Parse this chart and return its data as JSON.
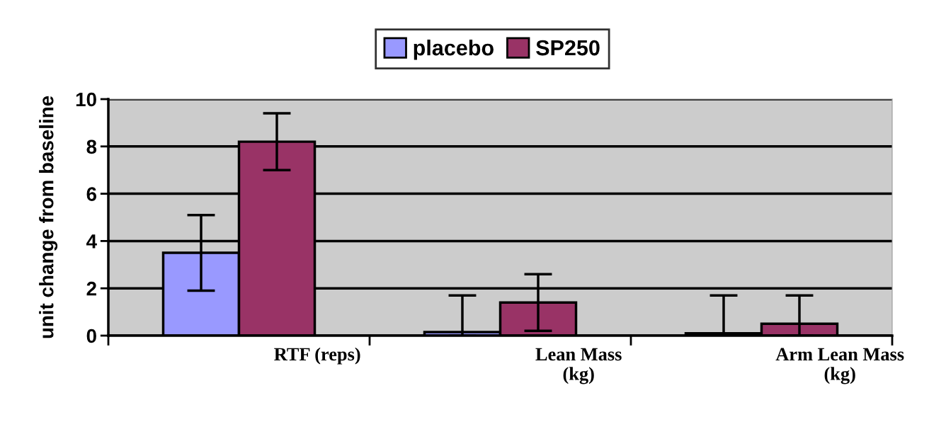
{
  "chart_data": {
    "type": "bar",
    "ylabel": "unit change from baseline",
    "categories": [
      "RTF (reps)",
      "Lean Mass\n(kg)",
      "Arm Lean Mass\n(kg)"
    ],
    "series": [
      {
        "name": "placebo",
        "color": "#9999ff",
        "values": [
          3.5,
          0.15,
          0.1
        ],
        "errors": [
          1.6,
          [
            0,
            1.7
          ],
          [
            0,
            1.7
          ]
        ]
      },
      {
        "name": "SP250",
        "color": "#993366",
        "values": [
          8.2,
          1.4,
          0.5
        ],
        "errors": [
          1.2,
          1.2,
          [
            0,
            1.7
          ]
        ]
      }
    ],
    "ylim": [
      0,
      10
    ],
    "yticks": [
      0,
      2,
      4,
      6,
      8,
      10
    ],
    "grid": "y",
    "legend": "top"
  }
}
